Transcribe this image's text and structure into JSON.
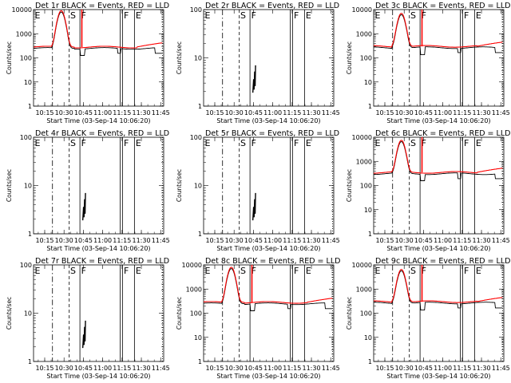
{
  "figure": {
    "x_tick_labels": [
      "10:15",
      "10:30",
      "10:45",
      "11:00",
      "11:15",
      "11:30",
      "11:45"
    ],
    "x_label": "Start Time (03-Sep-14 10:06:20)",
    "y_label": "Counts/sec"
  },
  "colors": {
    "events": "#000000",
    "lld": "#ff0000",
    "background": "#ffffff"
  },
  "chart_data": [
    {
      "type": "line",
      "title": "Det 1r BLACK = Events, RED = LLD",
      "ylim": [
        1,
        10000
      ],
      "yscale": "log",
      "y_ticks": [
        "1",
        "10",
        "100",
        "1000",
        "10000"
      ],
      "x_range_min": [
        0,
        101
      ],
      "markers": [
        "E",
        "S",
        "F",
        "F",
        "E"
      ],
      "baseline_counts": 280,
      "peak_counts": 9000,
      "series": [
        {
          "name": "Events",
          "color": "#000000"
        },
        {
          "name": "LLD",
          "color": "#ff0000"
        }
      ]
    },
    {
      "type": "line",
      "title": "Det 2r BLACK = Events, RED = LLD",
      "ylim": [
        1,
        100
      ],
      "yscale": "log",
      "y_ticks": [
        "1",
        "10",
        "100"
      ],
      "x_range_min": [
        0,
        101
      ],
      "markers": [
        "E",
        "S",
        "F",
        "F",
        "E"
      ],
      "series": [
        {
          "name": "Events",
          "color": "#000000"
        }
      ]
    },
    {
      "type": "line",
      "title": "Det 3c BLACK = Events, RED = LLD",
      "ylim": [
        1,
        10000
      ],
      "yscale": "log",
      "y_ticks": [
        "1",
        "10",
        "100",
        "1000",
        "10000"
      ],
      "x_range_min": [
        0,
        101
      ],
      "markers": [
        "E",
        "S",
        "F",
        "F",
        "E"
      ],
      "baseline_counts": 300,
      "peak_counts": 7000,
      "series": [
        {
          "name": "Events",
          "color": "#000000"
        },
        {
          "name": "LLD",
          "color": "#ff0000"
        }
      ]
    },
    {
      "type": "line",
      "title": "Det 4r BLACK = Events, RED = LLD",
      "ylim": [
        1,
        100
      ],
      "yscale": "log",
      "y_ticks": [
        "1",
        "10",
        "100"
      ],
      "x_range_min": [
        0,
        101
      ],
      "markers": [
        "E",
        "S",
        "F",
        "F",
        "E"
      ],
      "series": [
        {
          "name": "Events",
          "color": "#000000"
        }
      ]
    },
    {
      "type": "line",
      "title": "Det 5r BLACK = Events, RED = LLD",
      "ylim": [
        1,
        100
      ],
      "yscale": "log",
      "y_ticks": [
        "1",
        "10",
        "100"
      ],
      "x_range_min": [
        0,
        101
      ],
      "markers": [
        "E",
        "S",
        "F",
        "F",
        "E"
      ],
      "series": [
        {
          "name": "Events",
          "color": "#000000"
        }
      ]
    },
    {
      "type": "line",
      "title": "Det 6c BLACK = Events, RED = LLD",
      "ylim": [
        1,
        10000
      ],
      "yscale": "log",
      "y_ticks": [
        "1",
        "10",
        "100",
        "1000",
        "10000"
      ],
      "x_range_min": [
        0,
        101
      ],
      "markers": [
        "E",
        "S",
        "F",
        "F",
        "E"
      ],
      "baseline_counts": 350,
      "peak_counts": 7500,
      "series": [
        {
          "name": "Events",
          "color": "#000000"
        },
        {
          "name": "LLD",
          "color": "#ff0000"
        }
      ]
    },
    {
      "type": "line",
      "title": "Det 7r BLACK = Events, RED = LLD",
      "ylim": [
        1,
        100
      ],
      "yscale": "log",
      "y_ticks": [
        "1",
        "10",
        "100"
      ],
      "x_range_min": [
        0,
        101
      ],
      "markers": [
        "E",
        "S",
        "F",
        "F",
        "E"
      ],
      "series": [
        {
          "name": "Events",
          "color": "#000000"
        }
      ]
    },
    {
      "type": "line",
      "title": "Det 8c BLACK = Events, RED = LLD",
      "ylim": [
        1,
        10000
      ],
      "yscale": "log",
      "y_ticks": [
        "1",
        "10",
        "100",
        "1000",
        "10000"
      ],
      "x_range_min": [
        0,
        101
      ],
      "markers": [
        "E",
        "S",
        "F",
        "F",
        "E"
      ],
      "baseline_counts": 280,
      "peak_counts": 8000,
      "series": [
        {
          "name": "Events",
          "color": "#000000"
        },
        {
          "name": "LLD",
          "color": "#ff0000"
        }
      ]
    },
    {
      "type": "line",
      "title": "Det 9c BLACK = Events, RED = LLD",
      "ylim": [
        1,
        10000
      ],
      "yscale": "log",
      "y_ticks": [
        "1",
        "10",
        "100",
        "1000",
        "10000"
      ],
      "x_range_min": [
        0,
        101
      ],
      "markers": [
        "E",
        "S",
        "F",
        "F",
        "E"
      ],
      "baseline_counts": 300,
      "peak_counts": 6500,
      "series": [
        {
          "name": "Events",
          "color": "#000000"
        },
        {
          "name": "LLD",
          "color": "#ff0000"
        }
      ]
    }
  ]
}
